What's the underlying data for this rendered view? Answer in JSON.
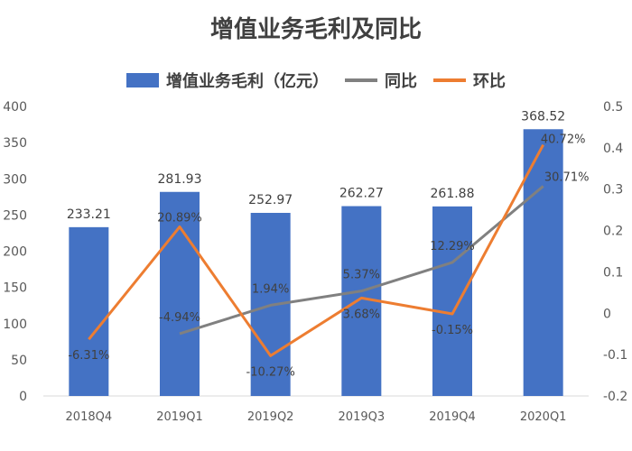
{
  "chart_data": {
    "type": "bar",
    "title": "增值业务毛利及同比",
    "categories": [
      "2018Q4",
      "2019Q1",
      "2019Q2",
      "2019Q3",
      "2019Q4",
      "2020Q1"
    ],
    "series": [
      {
        "name": "增值业务毛利（亿元）",
        "type": "bar",
        "axis": "left",
        "values": [
          233.21,
          281.93,
          252.97,
          262.27,
          261.88,
          368.52
        ],
        "labels": [
          "233.21",
          "281.93",
          "252.97",
          "262.27",
          "261.88",
          "368.52"
        ],
        "color": "#4472c4"
      },
      {
        "name": "同比",
        "type": "line",
        "axis": "right",
        "values": [
          null,
          -0.0494,
          0.0194,
          0.0537,
          0.1229,
          0.3071
        ],
        "labels": [
          null,
          "-4.94%",
          "1.94%",
          "5.37%",
          "12.29%",
          "30.71%"
        ],
        "color": "#808080"
      },
      {
        "name": "环比",
        "type": "line",
        "axis": "right",
        "values": [
          -0.0631,
          0.2089,
          -0.1027,
          0.0368,
          -0.0015,
          0.4072
        ],
        "labels": [
          "-6.31%",
          "20.89%",
          "-10.27%",
          "3.68%",
          "-0.15%",
          "40.72%"
        ],
        "color": "#ed7d31"
      }
    ],
    "ylim": [
      0,
      400
    ],
    "y_ticks": [
      "0",
      "50",
      "100",
      "150",
      "200",
      "250",
      "300",
      "350",
      "400"
    ],
    "y2lim": [
      -0.2,
      0.5
    ],
    "y2_ticks": [
      "-0.2",
      "-0.1",
      "0",
      "0.1",
      "0.2",
      "0.3",
      "0.4",
      "0.5"
    ],
    "legend_position": "top-center"
  }
}
